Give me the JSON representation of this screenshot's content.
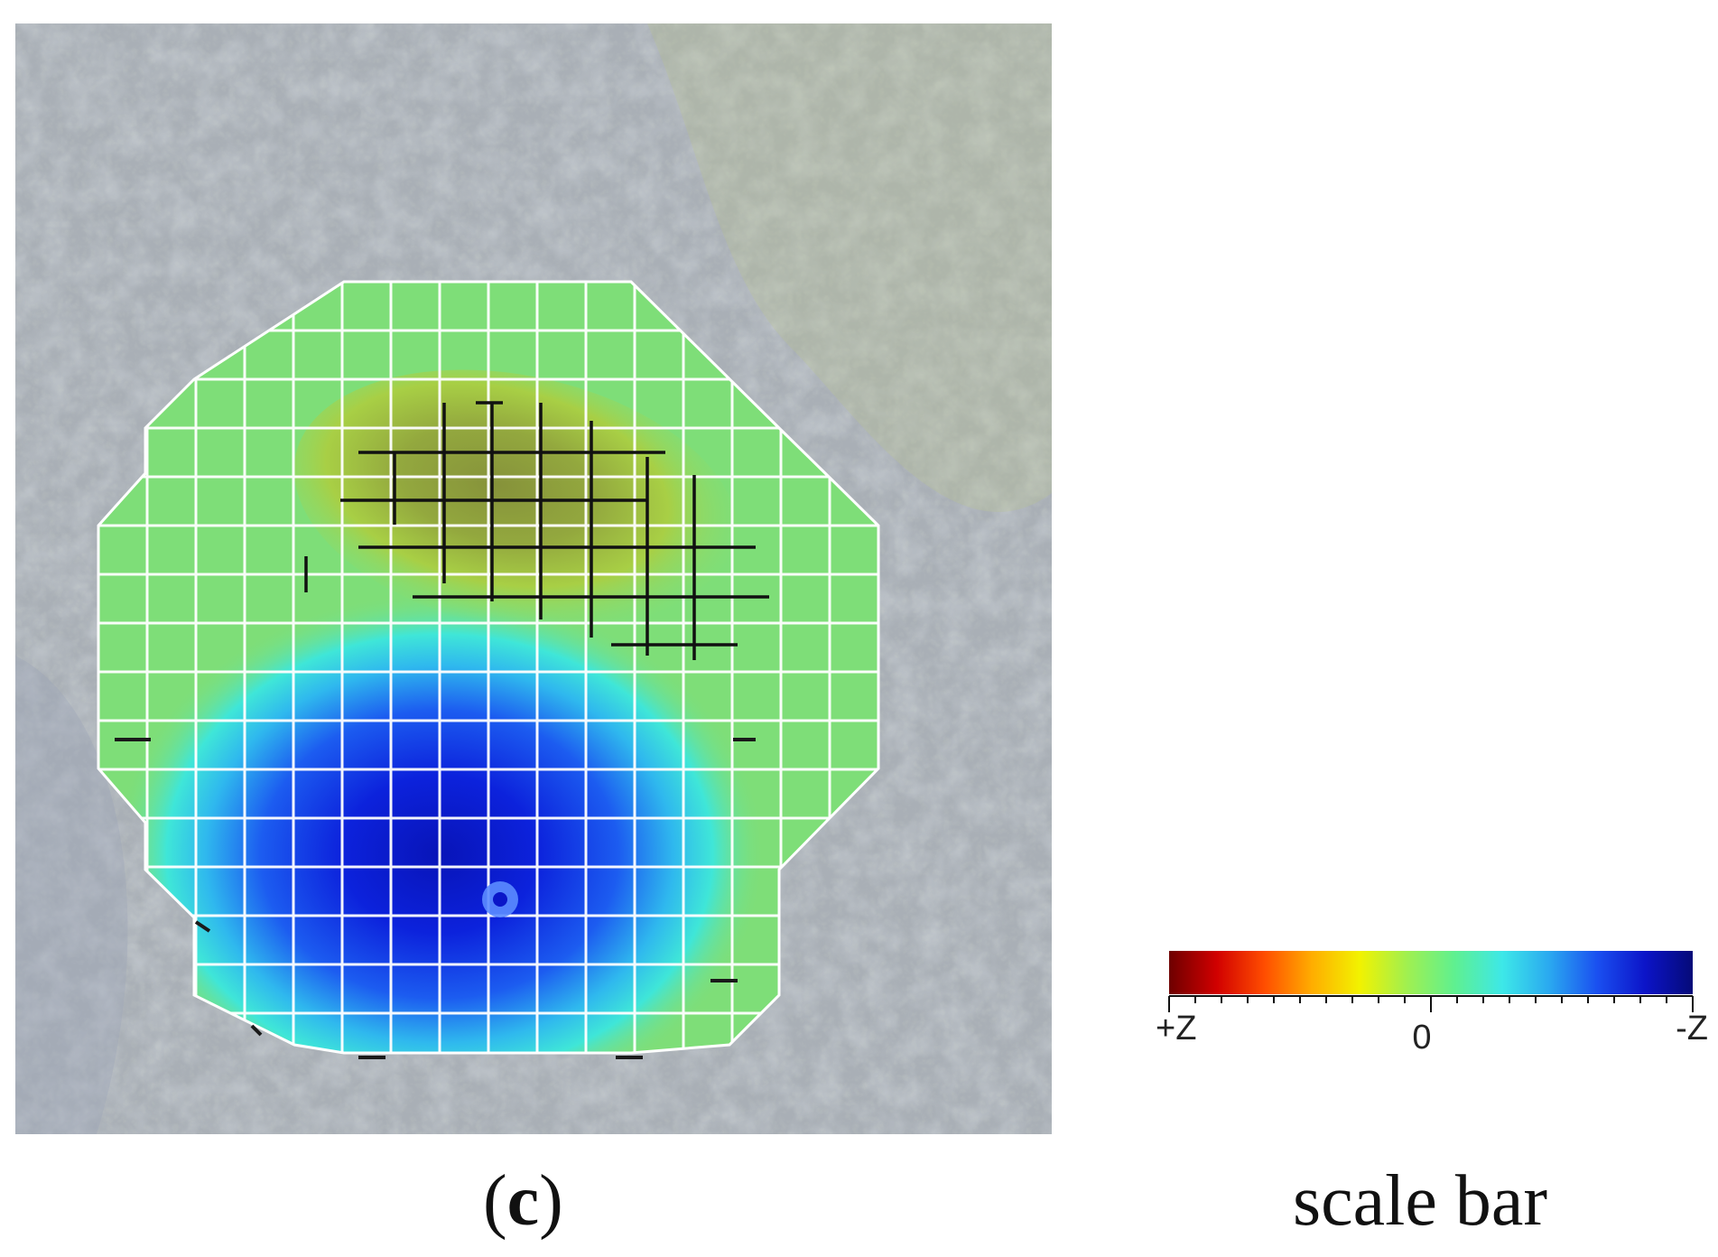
{
  "panel": {
    "letter": "c",
    "paren_open": "(",
    "paren_close": ")"
  },
  "scale_bar": {
    "caption": "scale bar",
    "labels": {
      "left": "+Z",
      "middle": "0",
      "right": "-Z"
    },
    "gradient_colors": [
      "#6e0000",
      "#d10000",
      "#ff4d00",
      "#ffad00",
      "#f2f200",
      "#a0f050",
      "#5ff090",
      "#3de8e8",
      "#2aa8f0",
      "#1a4ff0",
      "#0c14c8",
      "#050a78"
    ]
  },
  "colors": {
    "background_photo": "#a7adb4",
    "map_green": "#7ee07a",
    "map_blue_deep": "#0a1fd6",
    "map_cyan": "#34e6e6",
    "map_yellow_green": "#a9d64a",
    "grid_white": "#ffffff",
    "grid_black": "#111111",
    "probe_marker": "#5b8cff"
  }
}
